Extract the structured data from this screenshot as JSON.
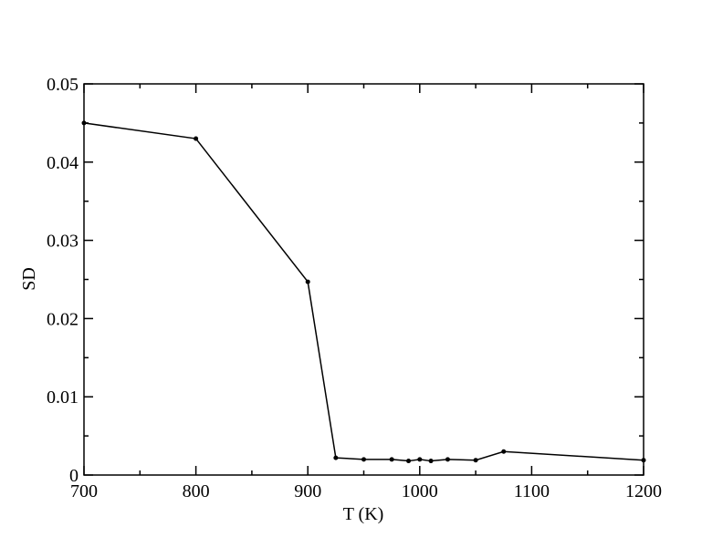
{
  "chart_data": {
    "type": "line",
    "x_label": "T (K)",
    "y_label": "SD",
    "color": "#000000",
    "x": [
      700,
      800,
      900,
      925,
      950,
      975,
      990,
      1000,
      1010,
      1025,
      1050,
      1075,
      1200
    ],
    "values": [
      0.045,
      0.043,
      0.0247,
      0.0022,
      0.002,
      0.002,
      0.0018,
      0.002,
      0.0018,
      0.002,
      0.0019,
      0.003,
      0.0019
    ],
    "xlim": [
      700,
      1200
    ],
    "xticks": [
      700,
      800,
      900,
      1000,
      1100,
      1200
    ],
    "ylim": [
      0,
      0.05
    ],
    "yticks": [
      0,
      0.01,
      0.02,
      0.03,
      0.04,
      0.05
    ]
  }
}
